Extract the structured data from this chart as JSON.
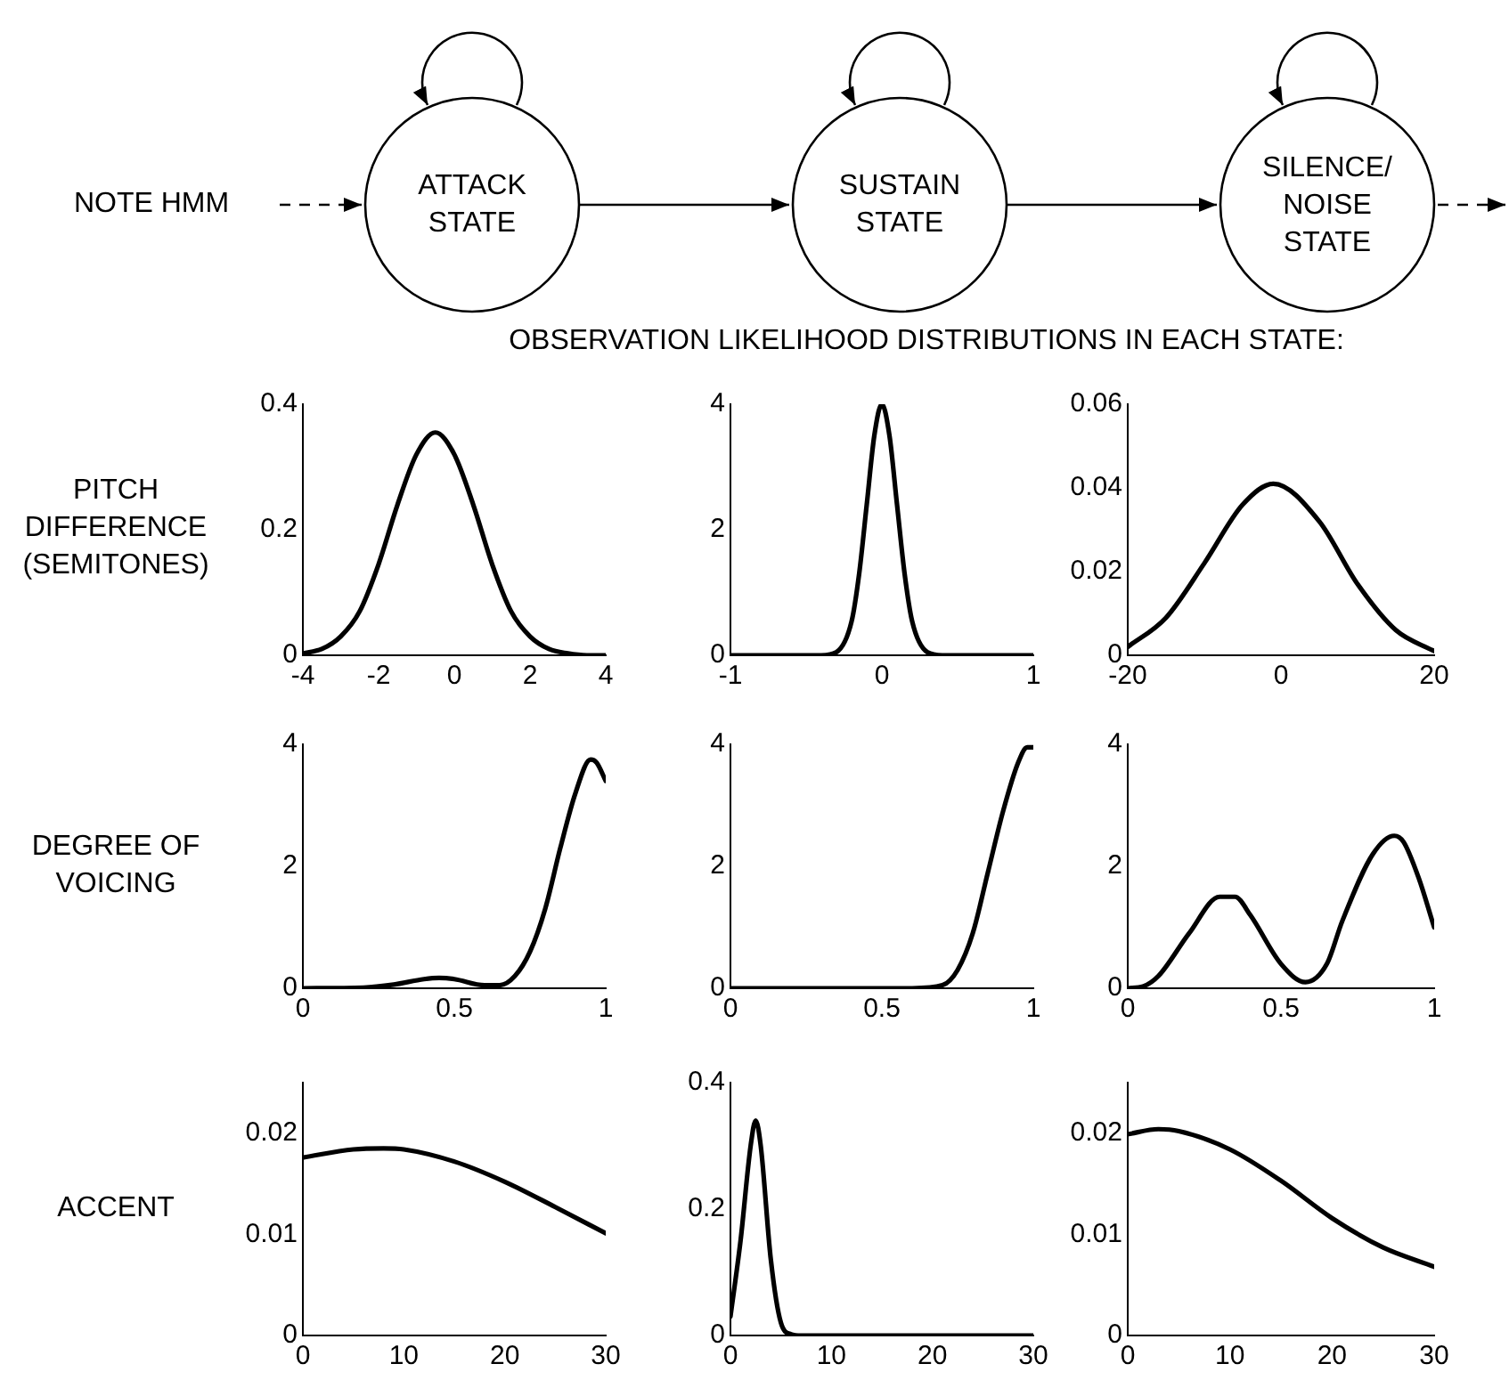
{
  "chart_data": [
    {
      "type": "other",
      "annotations": [
        "NOTE HMM",
        "ATTACK STATE",
        "SUSTAIN STATE",
        "SILENCE/ NOISE STATE",
        "OBSERVATION LIKELIHOOD DISTRIBUTIONS IN EACH STATE:"
      ]
    },
    {
      "type": "line",
      "ylabel": "PITCH DIFFERENCE (SEMITONES)",
      "marker": "none",
      "color": "#000000",
      "x": [
        -4,
        -3.5,
        -3,
        -2.5,
        -2,
        -1.5,
        -1,
        -0.5,
        0,
        0.5,
        1,
        1.5,
        2,
        2.5,
        3,
        3.5,
        4
      ],
      "values": [
        0.003,
        0.01,
        0.03,
        0.07,
        0.145,
        0.24,
        0.32,
        0.355,
        0.32,
        0.24,
        0.145,
        0.07,
        0.03,
        0.01,
        0.003,
        0,
        0
      ],
      "xlim": [
        -4,
        4
      ],
      "xticks": [
        -4,
        -2,
        0,
        2,
        4
      ],
      "ylim": [
        0,
        0.4
      ],
      "yticks": [
        0,
        0.2,
        0.4
      ]
    },
    {
      "type": "line",
      "marker": "none",
      "color": "#000000",
      "x": [
        -1,
        -0.4,
        -0.3,
        -0.2,
        -0.15,
        -0.1,
        -0.05,
        0,
        0.05,
        0.1,
        0.15,
        0.2,
        0.3,
        0.4,
        1
      ],
      "values": [
        0,
        0,
        0.05,
        0.54,
        1.3,
        2.4,
        3.5,
        4,
        3.5,
        2.4,
        1.3,
        0.54,
        0.05,
        0,
        0
      ],
      "xlim": [
        -1,
        1
      ],
      "xticks": [
        -1,
        0,
        1
      ],
      "ylim": [
        0,
        4
      ],
      "yticks": [
        0,
        2,
        4
      ]
    },
    {
      "type": "line",
      "marker": "none",
      "color": "#000000",
      "x": [
        -20,
        -15,
        -10,
        -5,
        -1,
        5,
        10,
        15,
        20
      ],
      "values": [
        0.002,
        0.009,
        0.022,
        0.036,
        0.041,
        0.032,
        0.017,
        0.006,
        0.001
      ],
      "xlim": [
        -20,
        20
      ],
      "xticks": [
        -20,
        0,
        20
      ],
      "ylim": [
        0,
        0.06
      ],
      "yticks": [
        0,
        0.02,
        0.04,
        0.06
      ]
    },
    {
      "type": "line",
      "ylabel": "DEGREE OF VOICING",
      "marker": "none",
      "color": "#000000",
      "x": [
        0,
        0.2,
        0.3,
        0.4,
        0.45,
        0.5,
        0.6,
        0.65,
        0.7,
        0.75,
        0.8,
        0.85,
        0.9,
        0.95,
        0.97,
        1
      ],
      "values": [
        0,
        0.01,
        0.06,
        0.15,
        0.17,
        0.15,
        0.05,
        0.05,
        0.2,
        0.6,
        1.3,
        2.3,
        3.2,
        3.75,
        3.7,
        3.4
      ],
      "xlim": [
        0,
        1
      ],
      "xticks": [
        0,
        0.5,
        1
      ],
      "ylim": [
        0,
        4
      ],
      "yticks": [
        0,
        2,
        4
      ]
    },
    {
      "type": "line",
      "marker": "none",
      "color": "#000000",
      "x": [
        0,
        0.6,
        0.7,
        0.75,
        0.8,
        0.85,
        0.9,
        0.95,
        0.98,
        1
      ],
      "values": [
        0,
        0,
        0.05,
        0.3,
        0.9,
        1.9,
        2.9,
        3.7,
        3.95,
        3.95
      ],
      "xlim": [
        0,
        1
      ],
      "xticks": [
        0,
        0.5,
        1
      ],
      "ylim": [
        0,
        4
      ],
      "yticks": [
        0,
        2,
        4
      ]
    },
    {
      "type": "line",
      "marker": "none",
      "color": "#000000",
      "x": [
        0,
        0.05,
        0.1,
        0.2,
        0.3,
        0.35,
        0.4,
        0.5,
        0.58,
        0.65,
        0.7,
        0.8,
        0.87,
        0.9,
        0.95,
        1
      ],
      "values": [
        0,
        0.03,
        0.2,
        0.9,
        1.5,
        1.5,
        1.2,
        0.4,
        0.1,
        0.4,
        1.1,
        2.2,
        2.5,
        2.4,
        1.8,
        1
      ],
      "xlim": [
        0,
        1
      ],
      "xticks": [
        0,
        0.5,
        1
      ],
      "ylim": [
        0,
        4
      ],
      "yticks": [
        0,
        2,
        4
      ]
    },
    {
      "type": "line",
      "ylabel": "ACCENT",
      "marker": "none",
      "color": "#000000",
      "x": [
        0,
        5,
        8,
        10,
        15,
        20,
        25,
        30
      ],
      "values": [
        0.0176,
        0.0184,
        0.0185,
        0.0184,
        0.0172,
        0.0152,
        0.0127,
        0.0101
      ],
      "xlim": [
        0,
        30
      ],
      "xticks": [
        0,
        10,
        20,
        30
      ],
      "ylim": [
        0,
        0.025
      ],
      "yticks": [
        0,
        0.01,
        0.02
      ]
    },
    {
      "type": "line",
      "marker": "none",
      "color": "#000000",
      "x": [
        0,
        1,
        2,
        2.5,
        3,
        4,
        5,
        6,
        7,
        30
      ],
      "values": [
        0.03,
        0.15,
        0.3,
        0.34,
        0.3,
        0.12,
        0.02,
        0.002,
        0,
        0
      ],
      "xlim": [
        0,
        30
      ],
      "xticks": [
        0,
        10,
        20,
        30
      ],
      "ylim": [
        0,
        0.4
      ],
      "yticks": [
        0,
        0.2,
        0.4
      ]
    },
    {
      "type": "line",
      "marker": "none",
      "color": "#000000",
      "x": [
        0,
        3,
        5,
        10,
        15,
        20,
        25,
        30
      ],
      "values": [
        0.0199,
        0.0204,
        0.0202,
        0.0184,
        0.0153,
        0.0116,
        0.0087,
        0.0068
      ],
      "xlim": [
        0,
        30
      ],
      "xticks": [
        0,
        10,
        20,
        30
      ],
      "ylim": [
        0,
        0.025
      ],
      "yticks": [
        0,
        0.01,
        0.02
      ]
    }
  ]
}
